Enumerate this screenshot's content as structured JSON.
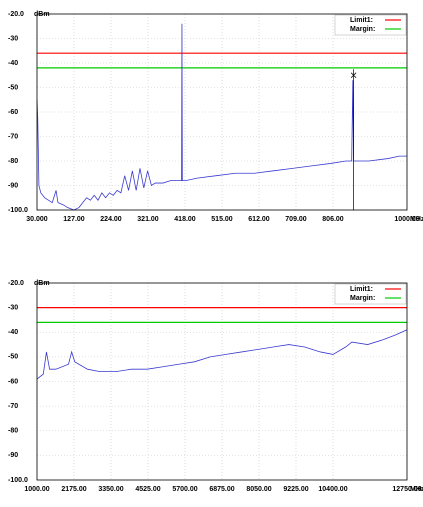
{
  "chart_data": [
    {
      "type": "line",
      "y_unit": "dBm",
      "x_unit": "MHz",
      "xlim": [
        30,
        1000
      ],
      "ylim": [
        -100,
        -20
      ],
      "xticks": [
        {
          "value": 30,
          "label": "30.000"
        },
        {
          "value": 127,
          "label": "127.00"
        },
        {
          "value": 224,
          "label": "224.00"
        },
        {
          "value": 321,
          "label": "321.00"
        },
        {
          "value": 418,
          "label": "418.00"
        },
        {
          "value": 515,
          "label": "515.00"
        },
        {
          "value": 612,
          "label": "612.00"
        },
        {
          "value": 709,
          "label": "709.00"
        },
        {
          "value": 806,
          "label": "806.00"
        },
        {
          "value": 1000,
          "label": "1000.00"
        }
      ],
      "yticks": [
        {
          "value": -20,
          "label": "-20.0"
        },
        -30,
        -40,
        -50,
        -60,
        -70,
        -80,
        -90,
        {
          "value": -100,
          "label": "-100.0"
        }
      ],
      "grid": true,
      "x": [
        30,
        32,
        35,
        40,
        50,
        60,
        70,
        80,
        85,
        100,
        110,
        127,
        140,
        150,
        160,
        170,
        180,
        190,
        200,
        210,
        220,
        230,
        240,
        250,
        260,
        270,
        280,
        290,
        300,
        310,
        320,
        330,
        340,
        360,
        380,
        400,
        409,
        410,
        411,
        420,
        450,
        500,
        550,
        600,
        650,
        700,
        750,
        800,
        840,
        855,
        858,
        860,
        880,
        900,
        950,
        980,
        1000
      ],
      "series": [
        {
          "color": "#3a3ad0",
          "values": [
            -55,
            -63,
            -90,
            -93,
            -95,
            -96,
            -97,
            -92,
            -97,
            -98,
            -99,
            -100,
            -99,
            -97,
            -95,
            -96,
            -94,
            -96,
            -93,
            -95,
            -93,
            -94,
            -92,
            -93,
            -86,
            -92,
            -84,
            -92,
            -83,
            -91,
            -84,
            -90,
            -89,
            -89,
            -88,
            -88,
            -88,
            -24,
            -88,
            -88,
            -87,
            -86,
            -85,
            -85,
            -84,
            -83,
            -82,
            -81,
            -80,
            -80,
            -47,
            -80,
            -80,
            -80,
            -79,
            -78,
            -78
          ]
        }
      ],
      "reference_lines": [
        {
          "name": "Limit1:",
          "color": "#ff0000",
          "value": -36
        },
        {
          "name": "Margin:",
          "color": "#00cc00",
          "value": -42
        }
      ],
      "marker": {
        "x": 860,
        "y": -45
      }
    },
    {
      "type": "line",
      "y_unit": "dBm",
      "x_unit": "MHz",
      "xlim": [
        1000,
        12750
      ],
      "ylim": [
        -100,
        -20
      ],
      "xticks": [
        {
          "value": 1000,
          "label": "1000.00"
        },
        {
          "value": 2175,
          "label": "2175.00"
        },
        {
          "value": 3350,
          "label": "3350.00"
        },
        {
          "value": 4525,
          "label": "4525.00"
        },
        {
          "value": 5700,
          "label": "5700.00"
        },
        {
          "value": 6875,
          "label": "6875.00"
        },
        {
          "value": 8050,
          "label": "8050.00"
        },
        {
          "value": 9225,
          "label": "9225.00"
        },
        {
          "value": 10400,
          "label": "10400.00"
        },
        {
          "value": 12750,
          "label": "12750.00"
        }
      ],
      "yticks": [
        {
          "value": -20,
          "label": "-20.0"
        },
        -30,
        -40,
        -50,
        -60,
        -70,
        -80,
        -90,
        {
          "value": -100,
          "label": "-100.0"
        }
      ],
      "grid": true,
      "x": [
        1000,
        1200,
        1300,
        1400,
        1600,
        2000,
        2100,
        2200,
        2600,
        3000,
        3500,
        4000,
        4500,
        5000,
        5500,
        6000,
        6500,
        7000,
        7500,
        8000,
        8500,
        9000,
        9500,
        10000,
        10400,
        10800,
        11000,
        11500,
        12000,
        12400,
        12750
      ],
      "series": [
        {
          "color": "#3a3ad0",
          "values": [
            -59,
            -57,
            -48,
            -55,
            -55,
            -53,
            -48,
            -52,
            -55,
            -56,
            -56,
            -55,
            -55,
            -54,
            -53,
            -52,
            -50,
            -49,
            -48,
            -47,
            -46,
            -45,
            -46,
            -48,
            -49,
            -46,
            -44,
            -45,
            -43,
            -41,
            -39
          ]
        }
      ],
      "reference_lines": [
        {
          "name": "Limit1:",
          "color": "#ff0000",
          "value": -30
        },
        {
          "name": "Margin:",
          "color": "#00cc00",
          "value": -36
        }
      ]
    }
  ]
}
